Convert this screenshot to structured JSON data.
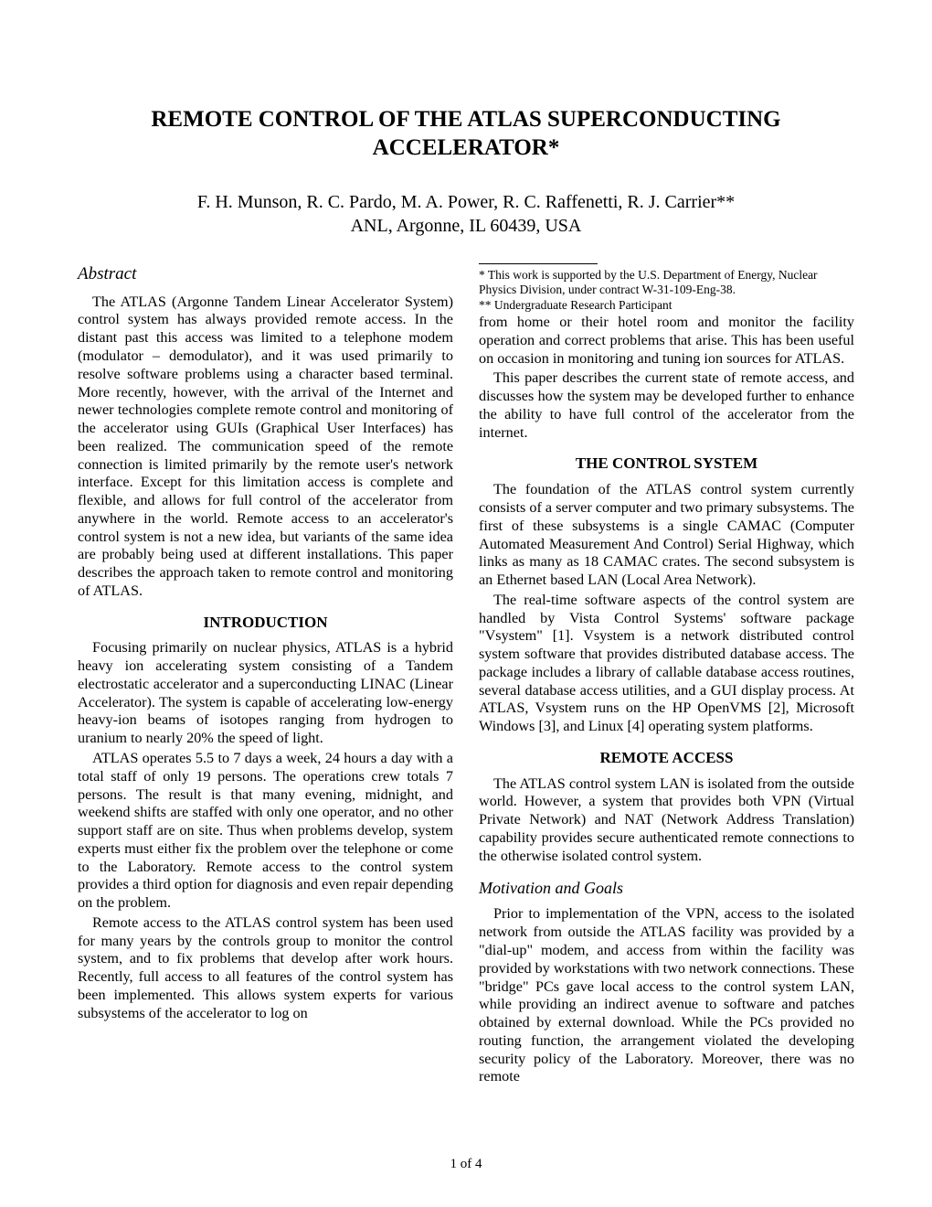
{
  "title": "REMOTE CONTROL OF THE ATLAS SUPERCONDUCTING ACCELERATOR*",
  "authors_line1": "F. H. Munson, R. C. Pardo, M. A. Power, R. C. Raffenetti, R. J. Carrier**",
  "authors_line2": "ANL, Argonne, IL 60439, USA",
  "abstract_heading": "Abstract",
  "abstract_p1": "The ATLAS (Argonne Tandem Linear Accelerator System) control system has always provided remote access. In the distant past this access was limited to a telephone modem (modulator – demodulator), and it was used primarily to resolve software problems using a character based terminal. More recently, however, with the arrival of the Internet and newer technologies complete remote control and monitoring of the accelerator using GUIs (Graphical User Interfaces) has been realized. The communication speed of the remote connection is limited primarily by the remote user's network interface. Except for this limitation access is complete and flexible, and allows for full control of the accelerator from anywhere in the world. Remote access to an accelerator's control system is not a new idea, but variants of the same idea are probably being used at different installations. This paper describes the approach taken to remote control and monitoring of ATLAS.",
  "intro_heading": "INTRODUCTION",
  "intro_p1": "Focusing primarily on nuclear physics, ATLAS is a hybrid heavy ion accelerating system consisting of a Tandem electrostatic accelerator and a superconducting LINAC (Linear Accelerator). The system is capable of accelerating low-energy heavy-ion beams of isotopes ranging from hydrogen to uranium to nearly 20% the speed of light.",
  "intro_p2": "ATLAS operates 5.5 to 7 days a week, 24 hours a day with a total staff of only 19 persons. The operations crew totals 7 persons. The result is that many evening, midnight, and weekend shifts are staffed with only one operator, and no other support staff are on site. Thus when problems develop, system experts must either fix the problem over the telephone or come to the Laboratory. Remote access to the control system provides a third option for diagnosis and even repair depending on the problem.",
  "intro_p3": "Remote access to the ATLAS control system has been used for many years by the controls group to monitor the control system, and to fix problems that develop after work hours. Recently, full access to all features of the control system has been implemented. This allows system experts for various subsystems of the accelerator to log on",
  "col2_p1": "from home or their hotel room and monitor the facility operation and correct problems that arise. This has been useful on occasion in monitoring and tuning ion sources for ATLAS.",
  "col2_p2": "This paper describes the current state of remote access, and discusses how the system may be developed further to enhance the ability to have full control of the accelerator from the internet.",
  "ctrl_heading": "THE CONTROL SYSTEM",
  "ctrl_p1": "The foundation of the ATLAS control system currently consists of a server computer and two primary subsystems. The first of these subsystems is a single CAMAC (Computer Automated Measurement And Control) Serial Highway, which links as many as 18 CAMAC crates. The second subsystem is an Ethernet based LAN (Local Area Network).",
  "ctrl_p2": "The real-time software aspects of the control system are handled by Vista Control Systems' software package \"Vsystem\" [1]. Vsystem is a network distributed control system software that provides distributed database access. The package includes a library of callable database access routines, several database access utilities, and a GUI display process. At ATLAS, Vsystem runs on the HP OpenVMS [2], Microsoft Windows [3], and Linux [4] operating system platforms.",
  "remote_heading": "REMOTE ACCESS",
  "remote_p1": "The ATLAS control system LAN is isolated from the outside world. However, a system that provides both VPN (Virtual Private Network) and NAT (Network Address Translation) capability provides secure authenticated remote connections to the otherwise isolated control system.",
  "motivation_heading": "Motivation and Goals",
  "motivation_p1": "Prior to implementation of the VPN, access to the isolated network from outside the ATLAS facility was provided by a \"dial-up\" modem, and access from within the facility was provided by workstations with two network connections.  These \"bridge\" PCs gave local access to the control system LAN, while providing an indirect avenue to software and patches obtained by external download.  While the PCs provided no routing function, the arrangement violated the developing security policy of the Laboratory.  Moreover, there was no remote",
  "footnote1": "* This work is supported by the U.S. Department of Energy, Nuclear Physics Division,  under contract W-31-109-Eng-38.",
  "footnote2": "** Undergraduate Research Participant",
  "page_number": "1 of 4"
}
